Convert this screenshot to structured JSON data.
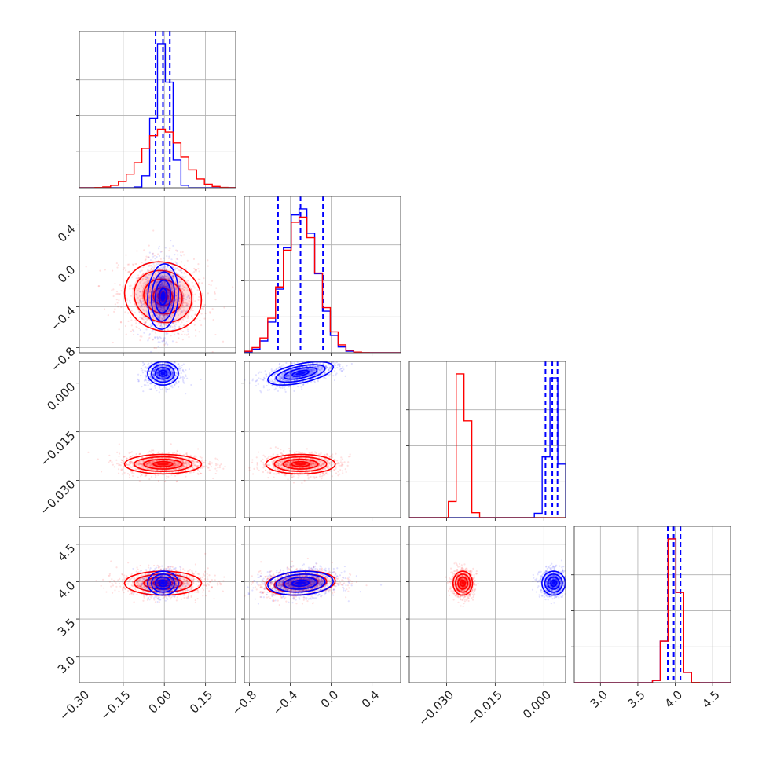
{
  "chart_data": {
    "type": "corner",
    "parameters": 4,
    "colors": {
      "series_a": "#0000ff",
      "series_b": "#ff0000"
    },
    "grid": true,
    "axes": [
      {
        "index": 0,
        "range": [
          -0.31,
          0.26
        ],
        "ticks": [
          -0.3,
          -0.15,
          0.0,
          0.15
        ],
        "tick_labels": [
          "−0.30",
          "−0.15",
          "0.00",
          "0.15"
        ]
      },
      {
        "index": 1,
        "range": [
          -0.85,
          0.68
        ],
        "ticks": [
          -0.8,
          -0.4,
          0.0,
          0.4
        ],
        "tick_labels": [
          "−0.8",
          "−0.4",
          "0.0",
          "0.4"
        ]
      },
      {
        "index": 2,
        "range": [
          -0.0415,
          0.0067
        ],
        "ticks": [
          -0.03,
          -0.015,
          0.0
        ],
        "tick_labels": [
          "−0.030",
          "−0.015",
          "0.000"
        ]
      },
      {
        "index": 3,
        "range": [
          2.65,
          4.74
        ],
        "ticks": [
          3.0,
          3.5,
          4.0,
          4.5
        ],
        "tick_labels": [
          "3.0",
          "3.5",
          "4.0",
          "4.5"
        ]
      }
    ],
    "series": [
      {
        "key": "series_a",
        "color": "#0000ff",
        "means": [
          -0.005,
          -0.3,
          0.003,
          3.98
        ],
        "sds": [
          0.028,
          0.16,
          0.0018,
          0.08
        ],
        "quantiles": [
          [
            -0.032,
            -0.005,
            0.02
          ],
          [
            -0.52,
            -0.3,
            -0.08
          ],
          [
            0.0005,
            0.0026,
            0.0042
          ],
          [
            3.9,
            3.98,
            4.07
          ]
        ],
        "correlations": {
          "0-1": 0.1,
          "1-2": 0.55,
          "0-3": 0.0,
          "1-3": 0.15,
          "2-3": 0.0,
          "0-2": 0.0
        }
      },
      {
        "key": "series_b",
        "color": "#ff0000",
        "means": [
          -0.005,
          -0.3,
          -0.025,
          3.98
        ],
        "sds": [
          0.07,
          0.17,
          0.0015,
          0.08
        ],
        "correlations": {
          "0-1": -0.1,
          "1-2": 0.0,
          "0-3": 0.0,
          "1-3": 0.2,
          "2-3": 0.0,
          "0-2": 0.0
        }
      }
    ]
  }
}
